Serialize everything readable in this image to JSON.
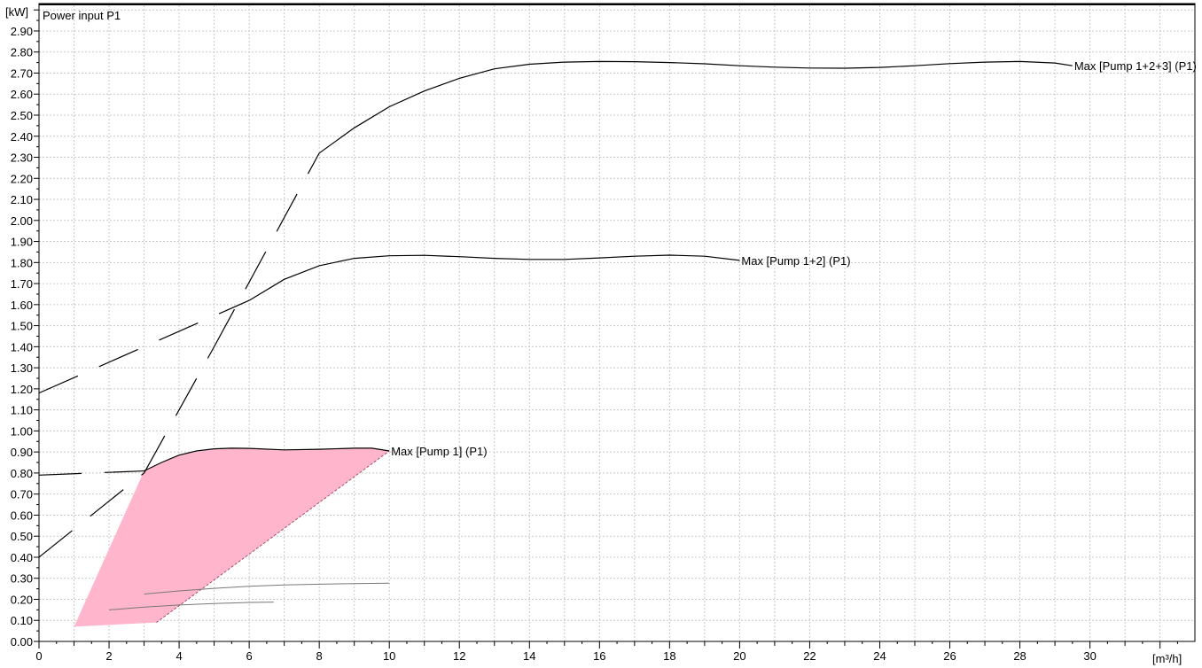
{
  "chart_data": {
    "type": "line",
    "title": "Power input P1",
    "xlabel": "[m³/h]",
    "ylabel": "[kW]",
    "xlim": [
      0,
      33
    ],
    "ylim": [
      0,
      3
    ],
    "grid": true,
    "x_ticks": [
      "0",
      "2",
      "4",
      "6",
      "8",
      "10",
      "12",
      "14",
      "16",
      "18",
      "20",
      "22",
      "24",
      "26",
      "28",
      "30"
    ],
    "y_ticks": [
      "0.00",
      "0.10",
      "0.20",
      "0.30",
      "0.40",
      "0.50",
      "0.60",
      "0.70",
      "0.80",
      "0.90",
      "1.00",
      "1.10",
      "1.20",
      "1.30",
      "1.40",
      "1.50",
      "1.60",
      "1.70",
      "1.80",
      "1.90",
      "2.00",
      "2.10",
      "2.20",
      "2.30",
      "2.40",
      "2.50",
      "2.60",
      "2.70",
      "2.80",
      "2.90"
    ],
    "series": [
      {
        "name": "Max [Pump 1] (P1)",
        "color": "#000000",
        "dashed_x": [
          0,
          3
        ],
        "dashed_y": [
          0.79,
          0.81
        ],
        "x": [
          3,
          3.5,
          4,
          4.5,
          5,
          5.5,
          6,
          7,
          8,
          9,
          9.5,
          10
        ],
        "y": [
          0.81,
          0.85,
          0.885,
          0.905,
          0.915,
          0.918,
          0.917,
          0.91,
          0.913,
          0.918,
          0.918,
          0.905
        ]
      },
      {
        "name": "Max [Pump 1+2] (P1)",
        "color": "#000000",
        "dashed_x": [
          0,
          6
        ],
        "dashed_y": [
          1.18,
          1.62
        ],
        "x": [
          6,
          7,
          8,
          9,
          10,
          11,
          12,
          13,
          14,
          15,
          16,
          17,
          18,
          19,
          20
        ],
        "y": [
          1.62,
          1.72,
          1.785,
          1.82,
          1.832,
          1.834,
          1.828,
          1.82,
          1.815,
          1.815,
          1.822,
          1.83,
          1.835,
          1.83,
          1.81
        ]
      },
      {
        "name": "Max [Pump 1+2+3] (P1)",
        "color": "#000000",
        "dashed_x": [
          0,
          8
        ],
        "dashed_y": [
          0.4,
          2.32
        ],
        "dashed_pairs": [
          [
            0,
            0.4,
            3,
            0.8
          ],
          [
            3,
            0.8,
            5,
            1.4
          ],
          [
            5,
            1.4,
            8,
            2.32
          ]
        ],
        "x": [
          8,
          9,
          10,
          11,
          12,
          13,
          14,
          15,
          16,
          17,
          18,
          19,
          20,
          21,
          22,
          23,
          24,
          25,
          26,
          27,
          28,
          29,
          29.5
        ],
        "y": [
          2.32,
          2.44,
          2.54,
          2.615,
          2.675,
          2.72,
          2.742,
          2.752,
          2.755,
          2.754,
          2.75,
          2.744,
          2.735,
          2.728,
          2.724,
          2.723,
          2.727,
          2.735,
          2.745,
          2.752,
          2.755,
          2.748,
          2.735
        ]
      },
      {
        "name": "",
        "color": "#777777",
        "x": [
          2,
          3,
          4,
          5,
          6,
          6.7
        ],
        "y": [
          0.15,
          0.163,
          0.173,
          0.18,
          0.185,
          0.187
        ]
      },
      {
        "name": "",
        "color": "#777777",
        "x": [
          3,
          4,
          5,
          6,
          7,
          8,
          9,
          10
        ],
        "y": [
          0.225,
          0.24,
          0.252,
          0.262,
          0.268,
          0.272,
          0.275,
          0.277
        ]
      }
    ],
    "area": {
      "color": "#ffb6cc",
      "x": [
        1,
        3,
        4,
        5,
        6,
        7,
        8,
        9,
        9.6,
        10,
        3.35,
        1
      ],
      "y": [
        0.07,
        0.81,
        0.885,
        0.915,
        0.917,
        0.91,
        0.913,
        0.918,
        0.918,
        0.905,
        0.09,
        0.07
      ]
    }
  }
}
